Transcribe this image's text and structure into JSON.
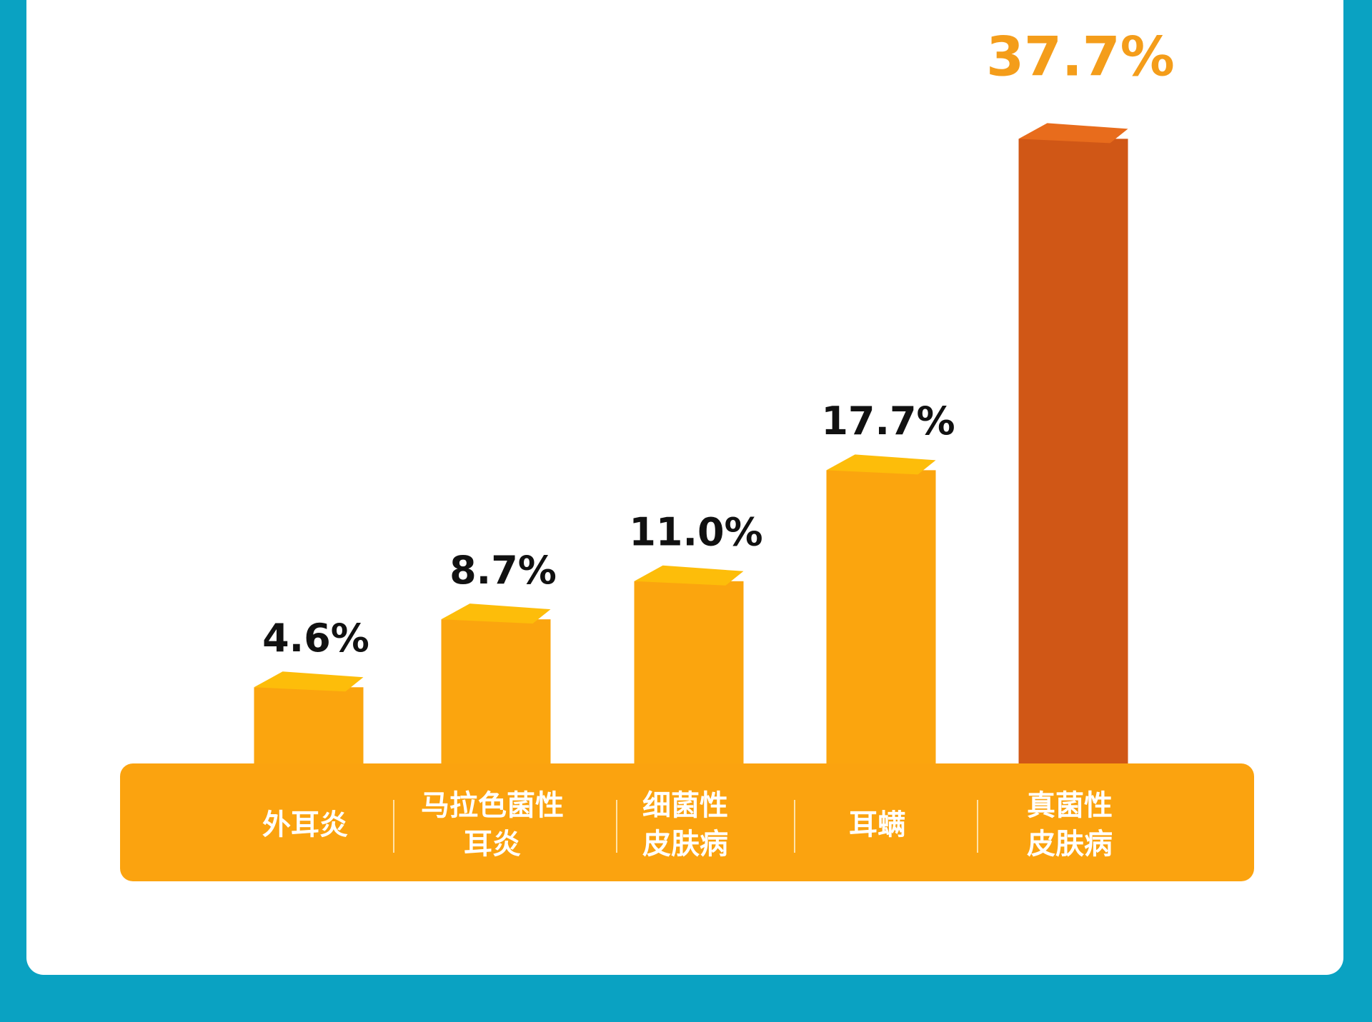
{
  "chart_data": {
    "type": "bar",
    "categories": [
      [
        "外耳炎"
      ],
      [
        "马拉色菌性",
        "耳炎"
      ],
      [
        "细菌性",
        "皮肤病"
      ],
      [
        "耳螨"
      ],
      [
        "真菌性",
        "皮肤病"
      ]
    ],
    "values": [
      4.6,
      8.7,
      11.0,
      17.7,
      37.7
    ],
    "value_labels": [
      "4.6%",
      "8.7%",
      "11.0%",
      "17.7%",
      "37.7%"
    ],
    "colors": [
      "#fba50e",
      "#fba50e",
      "#fba50e",
      "#fba50e",
      "#d05716"
    ],
    "label_colors": [
      "#111111",
      "#111111",
      "#111111",
      "#111111",
      "#f49d1a"
    ]
  }
}
